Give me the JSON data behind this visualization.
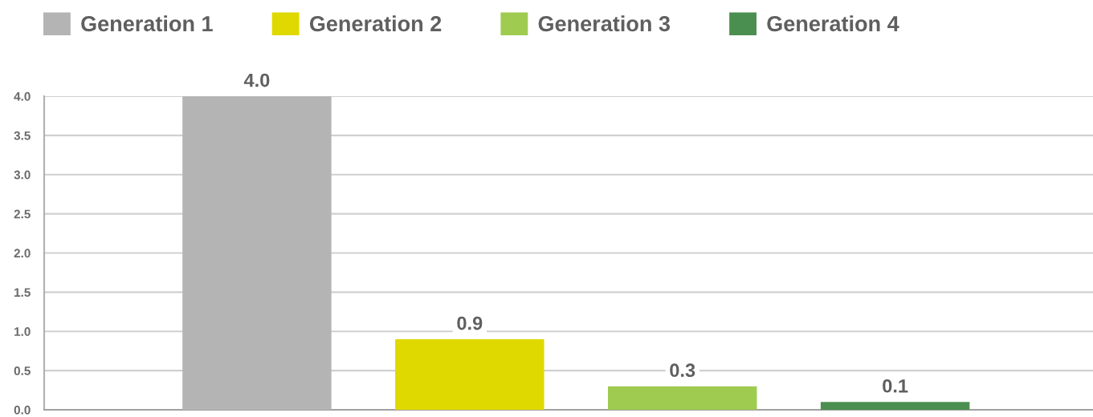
{
  "chart_data": {
    "type": "bar",
    "categories": [
      null
    ],
    "series": [
      {
        "name": "Generation 1",
        "color": "#b3b4b3",
        "values": [
          4.0
        ],
        "value_labels": [
          "4.0"
        ]
      },
      {
        "name": "Generation 2",
        "color": "#dfd900",
        "values": [
          0.9
        ],
        "value_labels": [
          "0.9"
        ]
      },
      {
        "name": "Generation 3",
        "color": "#9ecb50",
        "values": [
          0.3
        ],
        "value_labels": [
          "0.3"
        ]
      },
      {
        "name": "Generation 4",
        "color": "#4a8f50",
        "values": [
          0.1
        ],
        "value_labels": [
          "0.1"
        ]
      }
    ],
    "ylim": [
      0,
      4
    ],
    "yticks": [
      {
        "value": 0,
        "label": "0.0"
      },
      {
        "value": 0.5,
        "label": "0.5"
      },
      {
        "value": 1,
        "label": "1.0"
      },
      {
        "value": 1.5,
        "label": "1.5"
      },
      {
        "value": 2,
        "label": "2.0"
      },
      {
        "value": 2.5,
        "label": "2.5"
      },
      {
        "value": 3,
        "label": "3.0"
      },
      {
        "value": 3.5,
        "label": "3.5"
      },
      {
        "value": 4,
        "label": "4.0"
      }
    ],
    "grid": "y",
    "legend": "top"
  }
}
